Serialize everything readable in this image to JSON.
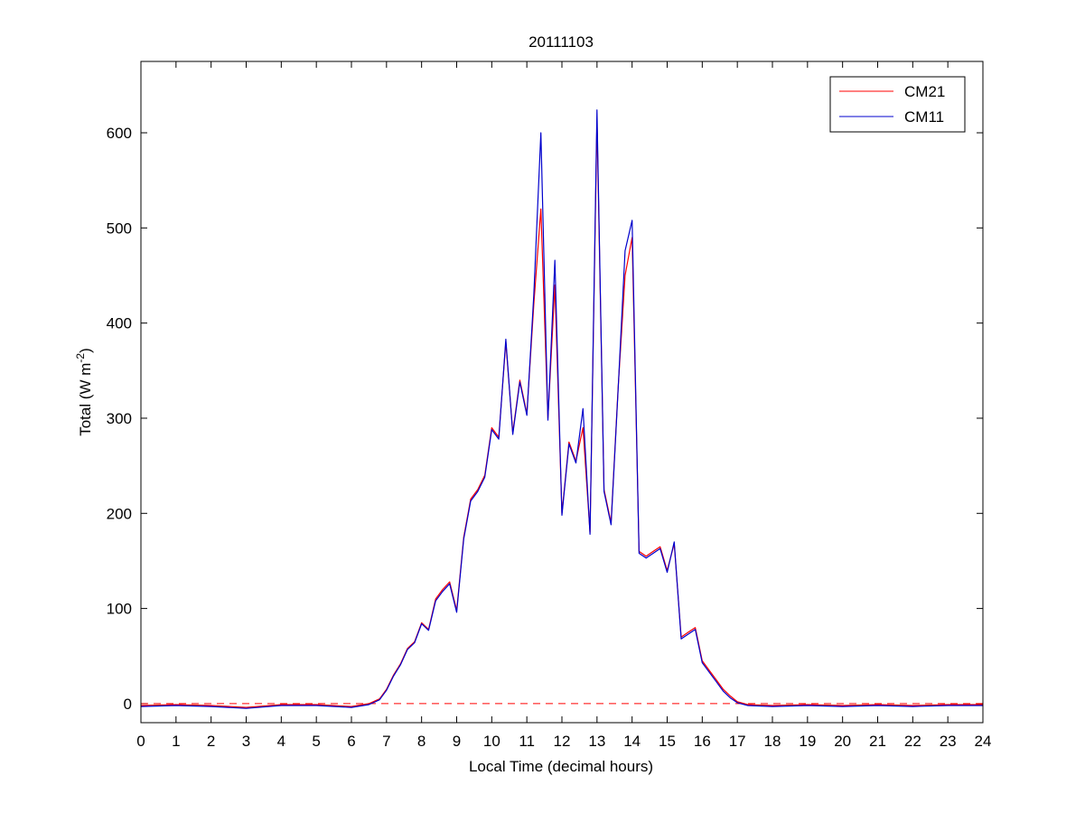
{
  "chart_data": {
    "type": "line",
    "title": "20111103",
    "xlabel": "Local Time (decimal hours)",
    "ylabel": {
      "prefix": "Total (W m",
      "superscript": "-2",
      "suffix": ")"
    },
    "xlim": [
      0,
      24
    ],
    "ylim": [
      -20,
      675
    ],
    "xticks": [
      0,
      1,
      2,
      3,
      4,
      5,
      6,
      7,
      8,
      9,
      10,
      11,
      12,
      13,
      14,
      15,
      16,
      17,
      18,
      19,
      20,
      21,
      22,
      23,
      24
    ],
    "yticks": [
      0,
      100,
      200,
      300,
      400,
      500,
      600
    ],
    "grid": false,
    "legend_position": "top-right",
    "reference_line": {
      "y": 0,
      "style": "dashed",
      "color": "#ff0000"
    },
    "series": [
      {
        "name": "CM21",
        "color": "#ff0000",
        "x": [
          0,
          1,
          2,
          3,
          4,
          5,
          6,
          6.5,
          6.8,
          7.0,
          7.2,
          7.4,
          7.6,
          7.8,
          8.0,
          8.2,
          8.4,
          8.6,
          8.8,
          9.0,
          9.2,
          9.4,
          9.6,
          9.8,
          10.0,
          10.2,
          10.4,
          10.6,
          10.8,
          11.0,
          11.2,
          11.4,
          11.6,
          11.8,
          12.0,
          12.2,
          12.4,
          12.6,
          12.8,
          13.0,
          13.2,
          13.4,
          13.6,
          13.8,
          14.0,
          14.2,
          14.4,
          14.6,
          14.8,
          15.0,
          15.2,
          15.4,
          15.6,
          15.8,
          16.0,
          16.2,
          16.4,
          16.6,
          16.8,
          17.0,
          17.3,
          18,
          19,
          20,
          21,
          22,
          23,
          24
        ],
        "values": [
          -2,
          -1,
          -2,
          -4,
          -1,
          -1,
          -3,
          0,
          5,
          15,
          30,
          42,
          58,
          65,
          85,
          78,
          110,
          120,
          128,
          98,
          175,
          215,
          225,
          240,
          290,
          280,
          380,
          285,
          340,
          305,
          420,
          520,
          300,
          440,
          200,
          275,
          255,
          290,
          180,
          612,
          225,
          190,
          330,
          450,
          490,
          160,
          155,
          160,
          165,
          140,
          168,
          70,
          75,
          80,
          45,
          35,
          25,
          15,
          8,
          2,
          -1,
          -2,
          -1,
          -2,
          -1,
          -2,
          -1,
          -1
        ]
      },
      {
        "name": "CM11",
        "color": "#0000cc",
        "x": [
          0,
          1,
          2,
          3,
          4,
          5,
          6,
          6.5,
          6.8,
          7.0,
          7.2,
          7.4,
          7.6,
          7.8,
          8.0,
          8.2,
          8.4,
          8.6,
          8.8,
          9.0,
          9.2,
          9.4,
          9.6,
          9.8,
          10.0,
          10.2,
          10.4,
          10.6,
          10.8,
          11.0,
          11.2,
          11.4,
          11.6,
          11.8,
          12.0,
          12.2,
          12.4,
          12.6,
          12.8,
          13.0,
          13.2,
          13.4,
          13.6,
          13.8,
          14.0,
          14.2,
          14.4,
          14.6,
          14.8,
          15.0,
          15.2,
          15.4,
          15.6,
          15.8,
          16.0,
          16.2,
          16.4,
          16.6,
          16.8,
          17.0,
          17.3,
          18,
          19,
          20,
          21,
          22,
          23,
          24
        ],
        "values": [
          -3,
          -2,
          -3,
          -5,
          -2,
          -2,
          -4,
          -1,
          4,
          14,
          29,
          41,
          57,
          64,
          84,
          77,
          108,
          118,
          126,
          96,
          173,
          213,
          223,
          238,
          288,
          278,
          383,
          283,
          338,
          303,
          430,
          600,
          298,
          466,
          198,
          273,
          253,
          310,
          178,
          624,
          223,
          188,
          328,
          476,
          508,
          158,
          153,
          158,
          163,
          138,
          170,
          68,
          73,
          78,
          43,
          33,
          23,
          13,
          6,
          1,
          -2,
          -3,
          -2,
          -3,
          -2,
          -3,
          -2,
          -2
        ]
      }
    ]
  }
}
